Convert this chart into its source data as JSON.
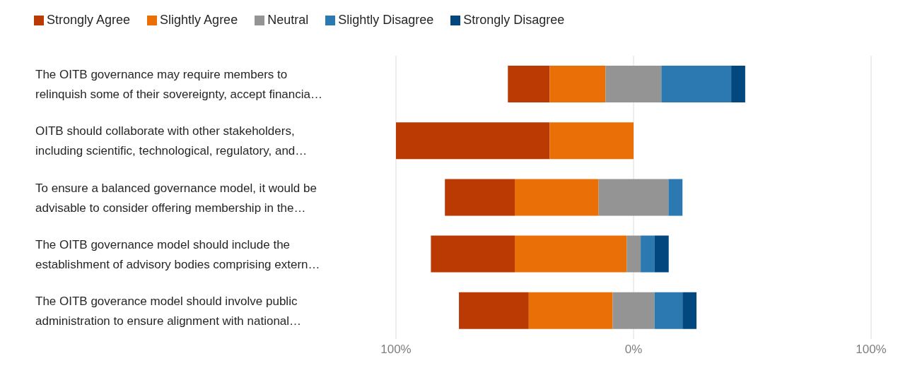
{
  "chart_data": {
    "type": "bar",
    "orientation": "horizontal",
    "categories": [
      "The OITB governance may require members to relinquish some of their sovereignty, accept financia…",
      "OITB should collaborate with other stakeholders, including scientific, technological, regulatory, and…",
      "To ensure a balanced governance model, it would be advisable to consider offering membership in the…",
      "The OITB governance model should include the establishment of advisory bodies comprising extern…",
      "The OITB goverance model should involve public administration to ensure alignment with national…"
    ],
    "series": [
      {
        "name": "Strongly Agree",
        "color": "#bb3a03",
        "base": [
          -52.9,
          -100,
          -79.4,
          -85.3,
          -73.5
        ],
        "values": [
          17.6,
          64.7,
          29.4,
          35.3,
          29.4
        ]
      },
      {
        "name": "Slightly Agree",
        "color": "#ea6f07",
        "base": [
          -35.3,
          -35.3,
          -50,
          -50,
          -44.1
        ],
        "values": [
          23.5,
          35.3,
          35.3,
          47.1,
          35.3
        ]
      },
      {
        "name": "Neutral",
        "color": "#949494",
        "base": [
          -11.8,
          null,
          -14.7,
          -2.9,
          -8.8
        ],
        "values": [
          23.5,
          null,
          29.4,
          5.9,
          17.6
        ]
      },
      {
        "name": "Slightly Disagree",
        "color": "#2b79b0",
        "base": [
          11.7,
          null,
          14.7,
          3,
          8.8
        ],
        "values": [
          29.4,
          null,
          5.9,
          5.9,
          11.8
        ]
      },
      {
        "name": "Strongly Disagree",
        "color": "#02477e",
        "base": [
          41.1,
          null,
          null,
          8.9,
          20.6
        ],
        "values": [
          5.9,
          null,
          null,
          5.9,
          5.9
        ]
      }
    ],
    "xlim": [
      -100,
      100
    ],
    "xticks": [
      {
        "value": -100,
        "label": "100%"
      },
      {
        "value": 0,
        "label": "0%"
      },
      {
        "value": 100,
        "label": "100%"
      }
    ],
    "grid": "x",
    "legend": "top left"
  }
}
